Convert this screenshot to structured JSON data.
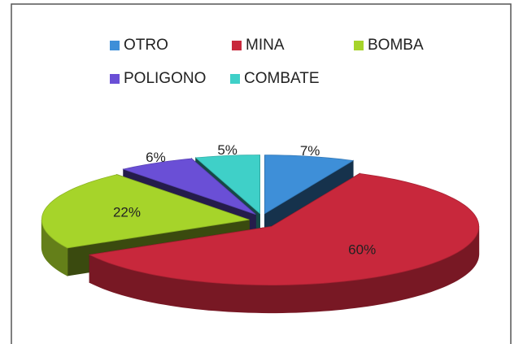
{
  "chart_data": {
    "type": "pie",
    "categories": [
      "OTRO",
      "MINA",
      "BOMBA",
      "POLIGONO",
      "COMBATE"
    ],
    "values": [
      7,
      60,
      22,
      6,
      5
    ],
    "value_labels": [
      "7%",
      "60%",
      "22%",
      "6%",
      "5%"
    ],
    "colors": [
      "#3e8fd8",
      "#c8283c",
      "#a6d42a",
      "#6a4fd6",
      "#3fd0c8"
    ],
    "legend": "top"
  }
}
